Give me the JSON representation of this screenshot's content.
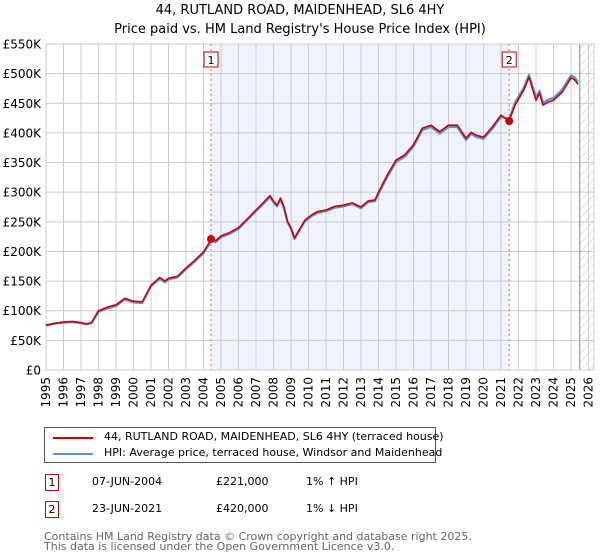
{
  "header": {
    "title": "44, RUTLAND ROAD, MAIDENHEAD, SL6 4HY",
    "subtitle": "Price paid vs. HM Land Registry's House Price Index (HPI)"
  },
  "colors": {
    "property_line": "#cc0000",
    "hpi_line": "#5b8fd6",
    "shaded_period": "#eef3fd",
    "marker_box": "#cc0000",
    "grid": "#cccccc"
  },
  "chart_data": {
    "type": "line",
    "title": "44, RUTLAND ROAD, MAIDENHEAD, SL6 4HY",
    "subtitle": "Price paid vs. HM Land Registry's House Price Index (HPI)",
    "xlabel": "",
    "ylabel": "",
    "xlim": [
      1995,
      2026
    ],
    "ylim": [
      0,
      550000
    ],
    "grid": true,
    "legend_position": "below",
    "x_ticks": [
      "1995",
      "1996",
      "1997",
      "1998",
      "1999",
      "2000",
      "2001",
      "2002",
      "2003",
      "2004",
      "2005",
      "2006",
      "2007",
      "2008",
      "2009",
      "2010",
      "2011",
      "2012",
      "2013",
      "2014",
      "2015",
      "2016",
      "2017",
      "2018",
      "2019",
      "2020",
      "2021",
      "2022",
      "2023",
      "2024",
      "2025",
      "2026"
    ],
    "y_ticks": [
      {
        "value": 0,
        "label": "£0"
      },
      {
        "value": 50000,
        "label": "£50K"
      },
      {
        "value": 100000,
        "label": "£100K"
      },
      {
        "value": 150000,
        "label": "£150K"
      },
      {
        "value": 200000,
        "label": "£200K"
      },
      {
        "value": 250000,
        "label": "£250K"
      },
      {
        "value": 300000,
        "label": "£300K"
      },
      {
        "value": 350000,
        "label": "£350K"
      },
      {
        "value": 400000,
        "label": "£400K"
      },
      {
        "value": 450000,
        "label": "£450K"
      },
      {
        "value": 500000,
        "label": "£500K"
      },
      {
        "value": 550000,
        "label": "£550K"
      }
    ],
    "shaded_range": [
      2004.43,
      2021.47
    ],
    "future_hatch_from": 2025.5,
    "series": [
      {
        "name": "44, RUTLAND ROAD, MAIDENHEAD, SL6 4HY (terraced house)",
        "color": "#cc0000",
        "x": [
          1995.0,
          1995.5,
          1996.0,
          1996.5,
          1997.0,
          1997.3,
          1997.6,
          1998.0,
          1998.5,
          1999.0,
          1999.5,
          2000.0,
          2000.5,
          2001.0,
          2001.5,
          2001.8,
          2002.0,
          2002.5,
          2003.0,
          2003.5,
          2004.0,
          2004.3,
          2004.43,
          2004.7,
          2005.0,
          2005.5,
          2006.0,
          2006.5,
          2007.0,
          2007.5,
          2007.8,
          2008.0,
          2008.2,
          2008.4,
          2008.6,
          2008.8,
          2009.0,
          2009.2,
          2009.5,
          2009.8,
          2010.2,
          2010.5,
          2011.0,
          2011.5,
          2012.0,
          2012.5,
          2013.0,
          2013.4,
          2013.8,
          2014.0,
          2014.5,
          2015.0,
          2015.5,
          2016.0,
          2016.5,
          2017.0,
          2017.5,
          2018.0,
          2018.5,
          2019.0,
          2019.3,
          2019.6,
          2020.0,
          2020.5,
          2021.0,
          2021.47,
          2021.8,
          2022.3,
          2022.6,
          2023.0,
          2023.2,
          2023.4,
          2023.7,
          2024.0,
          2024.5,
          2025.0,
          2025.2,
          2025.4
        ],
        "y": [
          76000,
          79000,
          81000,
          82000,
          80000,
          78000,
          80000,
          100000,
          106000,
          110000,
          121000,
          116000,
          115000,
          143000,
          156000,
          150000,
          155000,
          158000,
          172000,
          185000,
          199000,
          213000,
          221000,
          218000,
          226000,
          232000,
          240000,
          255000,
          270000,
          285000,
          294000,
          285000,
          278000,
          290000,
          275000,
          251000,
          240000,
          223000,
          238000,
          253000,
          262000,
          267000,
          270000,
          276000,
          278000,
          282000,
          275000,
          285000,
          287000,
          300000,
          329000,
          354000,
          363000,
          380000,
          408000,
          413000,
          402000,
          413000,
          413000,
          391000,
          401000,
          396000,
          393000,
          410000,
          430000,
          420000,
          447000,
          472000,
          494000,
          455000,
          467000,
          447000,
          452000,
          455000,
          469000,
          493000,
          490000,
          482000
        ]
      },
      {
        "name": "HPI: Average price, terraced house, Windsor and Maidenhead",
        "color": "#5b8fd6",
        "x": [
          1995.0,
          1995.5,
          1996.0,
          1996.5,
          1997.0,
          1997.3,
          1997.6,
          1998.0,
          1998.5,
          1999.0,
          1999.5,
          2000.0,
          2000.5,
          2001.0,
          2001.5,
          2001.8,
          2002.0,
          2002.5,
          2003.0,
          2003.5,
          2004.0,
          2004.3,
          2004.43,
          2004.7,
          2005.0,
          2005.5,
          2006.0,
          2006.5,
          2007.0,
          2007.5,
          2007.8,
          2008.0,
          2008.2,
          2008.4,
          2008.6,
          2008.8,
          2009.0,
          2009.2,
          2009.5,
          2009.8,
          2010.2,
          2010.5,
          2011.0,
          2011.5,
          2012.0,
          2012.5,
          2013.0,
          2013.4,
          2013.8,
          2014.0,
          2014.5,
          2015.0,
          2015.5,
          2016.0,
          2016.5,
          2017.0,
          2017.5,
          2018.0,
          2018.5,
          2019.0,
          2019.3,
          2019.6,
          2020.0,
          2020.5,
          2021.0,
          2021.47,
          2021.8,
          2022.3,
          2022.6,
          2023.0,
          2023.2,
          2023.4,
          2023.7,
          2024.0,
          2024.5,
          2025.0,
          2025.2,
          2025.4
        ],
        "y": [
          75000,
          78000,
          80000,
          81000,
          79000,
          77000,
          79000,
          98000,
          104000,
          108000,
          119000,
          114000,
          113000,
          141000,
          154000,
          148000,
          153000,
          156000,
          170000,
          183000,
          197000,
          211000,
          218000,
          216000,
          224000,
          230000,
          238000,
          253000,
          268000,
          283000,
          292000,
          283000,
          276000,
          288000,
          273000,
          249000,
          238000,
          221000,
          236000,
          251000,
          260000,
          265000,
          268000,
          274000,
          276000,
          280000,
          273000,
          283000,
          285000,
          297000,
          326000,
          351000,
          360000,
          377000,
          405000,
          410000,
          399000,
          410000,
          410000,
          388000,
          398000,
          393000,
          390000,
          407000,
          427000,
          424000,
          451000,
          476000,
          498000,
          459000,
          471000,
          451000,
          456000,
          459000,
          473000,
          497000,
          494000,
          486000
        ]
      }
    ],
    "sales": [
      {
        "marker": "1",
        "date": "07-JUN-2004",
        "x": 2004.43,
        "price": 221000,
        "price_label": "£221,000",
        "hpi_diff": "1% ↑ HPI"
      },
      {
        "marker": "2",
        "date": "23-JUN-2021",
        "x": 2021.47,
        "price": 420000,
        "price_label": "£420,000",
        "hpi_diff": "1% ↓ HPI"
      }
    ]
  },
  "legend": {
    "items": [
      {
        "label": "44, RUTLAND ROAD, MAIDENHEAD, SL6 4HY (terraced house)",
        "color": "#cc0000"
      },
      {
        "label": "HPI: Average price, terraced house, Windsor and Maidenhead",
        "color": "#5b8fd6"
      }
    ]
  },
  "table": {
    "rows": [
      {
        "marker": "1",
        "date": "07-JUN-2004",
        "price": "£221,000",
        "hpi": "1% ↑ HPI"
      },
      {
        "marker": "2",
        "date": "23-JUN-2021",
        "price": "£420,000",
        "hpi": "1% ↓ HPI"
      }
    ]
  },
  "footer": {
    "line1": "Contains HM Land Registry data © Crown copyright and database right 2025.",
    "line2": "This data is licensed under the Open Government Licence v3.0."
  }
}
